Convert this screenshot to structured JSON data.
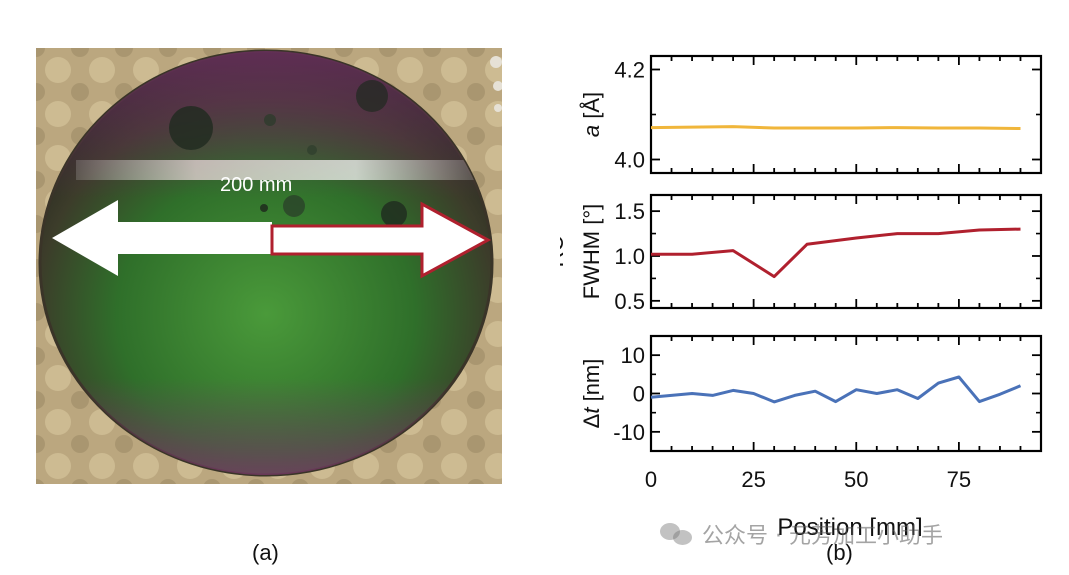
{
  "figure": {
    "panel_a": {
      "caption": "(a)",
      "scale_label": "200 mm"
    },
    "panel_b": {
      "caption": "(b)"
    },
    "watermark": "公众号 · 元芳加工小助手",
    "colors": {
      "lattice_line": "#f0b63b",
      "fwhm_line": "#b0202e",
      "thickness_line": "#4a72b8",
      "arrow_outline": "#b0202e"
    }
  },
  "chart_data": [
    {
      "type": "line",
      "ylabel_italic": "a",
      "ylabel_rest": " [Å]",
      "ylim": [
        3.97,
        4.23
      ],
      "yticks": [
        4.0,
        4.2
      ],
      "ytick_labels": [
        "4.0",
        "4.2"
      ],
      "xlim": [
        0,
        95
      ],
      "series": [
        {
          "x": [
            0,
            10,
            20,
            30,
            40,
            50,
            60,
            70,
            80,
            90
          ],
          "y": [
            4.071,
            4.072,
            4.073,
            4.07,
            4.07,
            4.07,
            4.071,
            4.07,
            4.07,
            4.069
          ]
        }
      ]
    },
    {
      "type": "line",
      "ylabel_line1": "RC",
      "ylabel_line2": "FWHM [°]",
      "ylim": [
        0.42,
        1.68
      ],
      "yticks": [
        0.5,
        1.0,
        1.5
      ],
      "ytick_labels": [
        "0.5",
        "1.0",
        "1.5"
      ],
      "xlim": [
        0,
        95
      ],
      "series": [
        {
          "x": [
            0,
            10,
            20,
            30,
            38,
            50,
            60,
            70,
            80,
            90
          ],
          "y": [
            1.02,
            1.02,
            1.06,
            0.77,
            1.13,
            1.2,
            1.25,
            1.25,
            1.29,
            1.3
          ]
        }
      ]
    },
    {
      "type": "line",
      "ylabel_italic_prefix": "Δ",
      "ylabel_italic": "t",
      "ylabel_rest": " [nm]",
      "ylim": [
        -15,
        15
      ],
      "yticks": [
        -10,
        0,
        10
      ],
      "ytick_labels": [
        "-10",
        "0",
        "10"
      ],
      "xlim": [
        0,
        95
      ],
      "xticks": [
        0,
        25,
        50,
        75
      ],
      "xtick_labels": [
        "0",
        "25",
        "50",
        "75"
      ],
      "xlabel": "Position [mm]",
      "series": [
        {
          "x": [
            0,
            5,
            10,
            15,
            20,
            25,
            30,
            35,
            40,
            45,
            50,
            55,
            60,
            65,
            70,
            75,
            80,
            85,
            90
          ],
          "y": [
            -1,
            -0.5,
            0,
            -0.5,
            0.8,
            0,
            -2.2,
            -0.5,
            0.6,
            -2.1,
            1,
            0,
            1,
            -1.3,
            2.7,
            4.3,
            -2.1,
            -0.2,
            2
          ]
        }
      ]
    }
  ]
}
